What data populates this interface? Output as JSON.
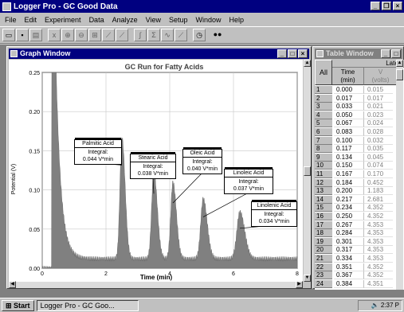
{
  "app": {
    "title": "Logger Pro - GC Good Data"
  },
  "menu": [
    "File",
    "Edit",
    "Experiment",
    "Data",
    "Analyze",
    "View",
    "Setup",
    "Window",
    "Help"
  ],
  "toolbar": [
    "open-icon",
    "save-icon",
    "print-icon",
    "examine-icon",
    "zoom-in-icon",
    "zoom-out-icon",
    "autoscale-icon",
    "tangent-icon",
    "fit-icon",
    "integrate-icon",
    "stats-icon",
    "curve-fit-icon",
    "plot-icon",
    "stopwatch-icon",
    "video-icon"
  ],
  "graph_window": {
    "title": "Graph Window"
  },
  "table_window": {
    "title": "Table Window",
    "group_header": "Latest",
    "all_button": "All",
    "col1_name": "Time",
    "col1_unit": "(min)",
    "col2_name": "V",
    "col2_unit": "(volts)"
  },
  "table_rows": [
    [
      "1",
      "0.000",
      "0.015"
    ],
    [
      "2",
      "0.017",
      "0.017"
    ],
    [
      "3",
      "0.033",
      "0.021"
    ],
    [
      "4",
      "0.050",
      "0.023"
    ],
    [
      "5",
      "0.067",
      "0.024"
    ],
    [
      "6",
      "0.083",
      "0.028"
    ],
    [
      "7",
      "0.100",
      "0.032"
    ],
    [
      "8",
      "0.117",
      "0.035"
    ],
    [
      "9",
      "0.134",
      "0.045"
    ],
    [
      "10",
      "0.150",
      "0.074"
    ],
    [
      "11",
      "0.167",
      "0.170"
    ],
    [
      "12",
      "0.184",
      "0.452"
    ],
    [
      "13",
      "0.200",
      "1.183"
    ],
    [
      "14",
      "0.217",
      "2.681"
    ],
    [
      "15",
      "0.234",
      "4.352"
    ],
    [
      "16",
      "0.250",
      "4.352"
    ],
    [
      "17",
      "0.267",
      "4.353"
    ],
    [
      "18",
      "0.284",
      "4.353"
    ],
    [
      "19",
      "0.301",
      "4.353"
    ],
    [
      "20",
      "0.317",
      "4.353"
    ],
    [
      "21",
      "0.334",
      "4.353"
    ],
    [
      "22",
      "0.351",
      "4.352"
    ],
    [
      "23",
      "0.367",
      "4.352"
    ],
    [
      "24",
      "0.384",
      "4.351"
    ]
  ],
  "annotations": [
    {
      "name": "Palmitic Acid",
      "integral_label": "Integral:",
      "integral_value": "0.044 V*min"
    },
    {
      "name": "Stearic Acid",
      "integral_label": "Integral:",
      "integral_value": "0.038 V*min"
    },
    {
      "name": "Oleic Acid",
      "integral_label": "Integral:",
      "integral_value": "0.040 V*min"
    },
    {
      "name": "Linoleic  Acid",
      "integral_label": "Integral:",
      "integral_value": "0.037 V*min"
    },
    {
      "name": "Linolenic Acid",
      "integral_label": "Integral:",
      "integral_value": "0.034 V*min"
    }
  ],
  "taskbar": {
    "start": "Start",
    "task": "Logger Pro - GC Goo...",
    "clock": "2:37 P"
  },
  "chart_data": {
    "type": "area",
    "title": "GC Run for Fatty Acids",
    "xlabel": "Time (min)",
    "ylabel": "Potential (V)",
    "xlim": [
      0,
      8
    ],
    "ylim": [
      0,
      0.25
    ],
    "xticks": [
      "0",
      "2",
      "4",
      "6",
      "8"
    ],
    "yticks": [
      "0.00",
      "0.05",
      "0.10",
      "0.15",
      "0.20",
      "0.25"
    ],
    "color": "#808080",
    "solvent_peak": {
      "x": 0.35,
      "tail_y": 0.012
    },
    "peaks": [
      {
        "name": "Palmitic Acid",
        "x": 2.5,
        "y": 0.155,
        "width": 0.12
      },
      {
        "name": "Stearic Acid",
        "x": 3.5,
        "y": 0.112,
        "width": 0.13
      },
      {
        "name": "Oleic Acid",
        "x": 4.1,
        "y": 0.098,
        "width": 0.13
      },
      {
        "name": "Linoleic  Acid",
        "x": 5.05,
        "y": 0.077,
        "width": 0.15
      },
      {
        "name": "Linolenic Acid",
        "x": 6.2,
        "y": 0.06,
        "width": 0.18
      }
    ]
  }
}
